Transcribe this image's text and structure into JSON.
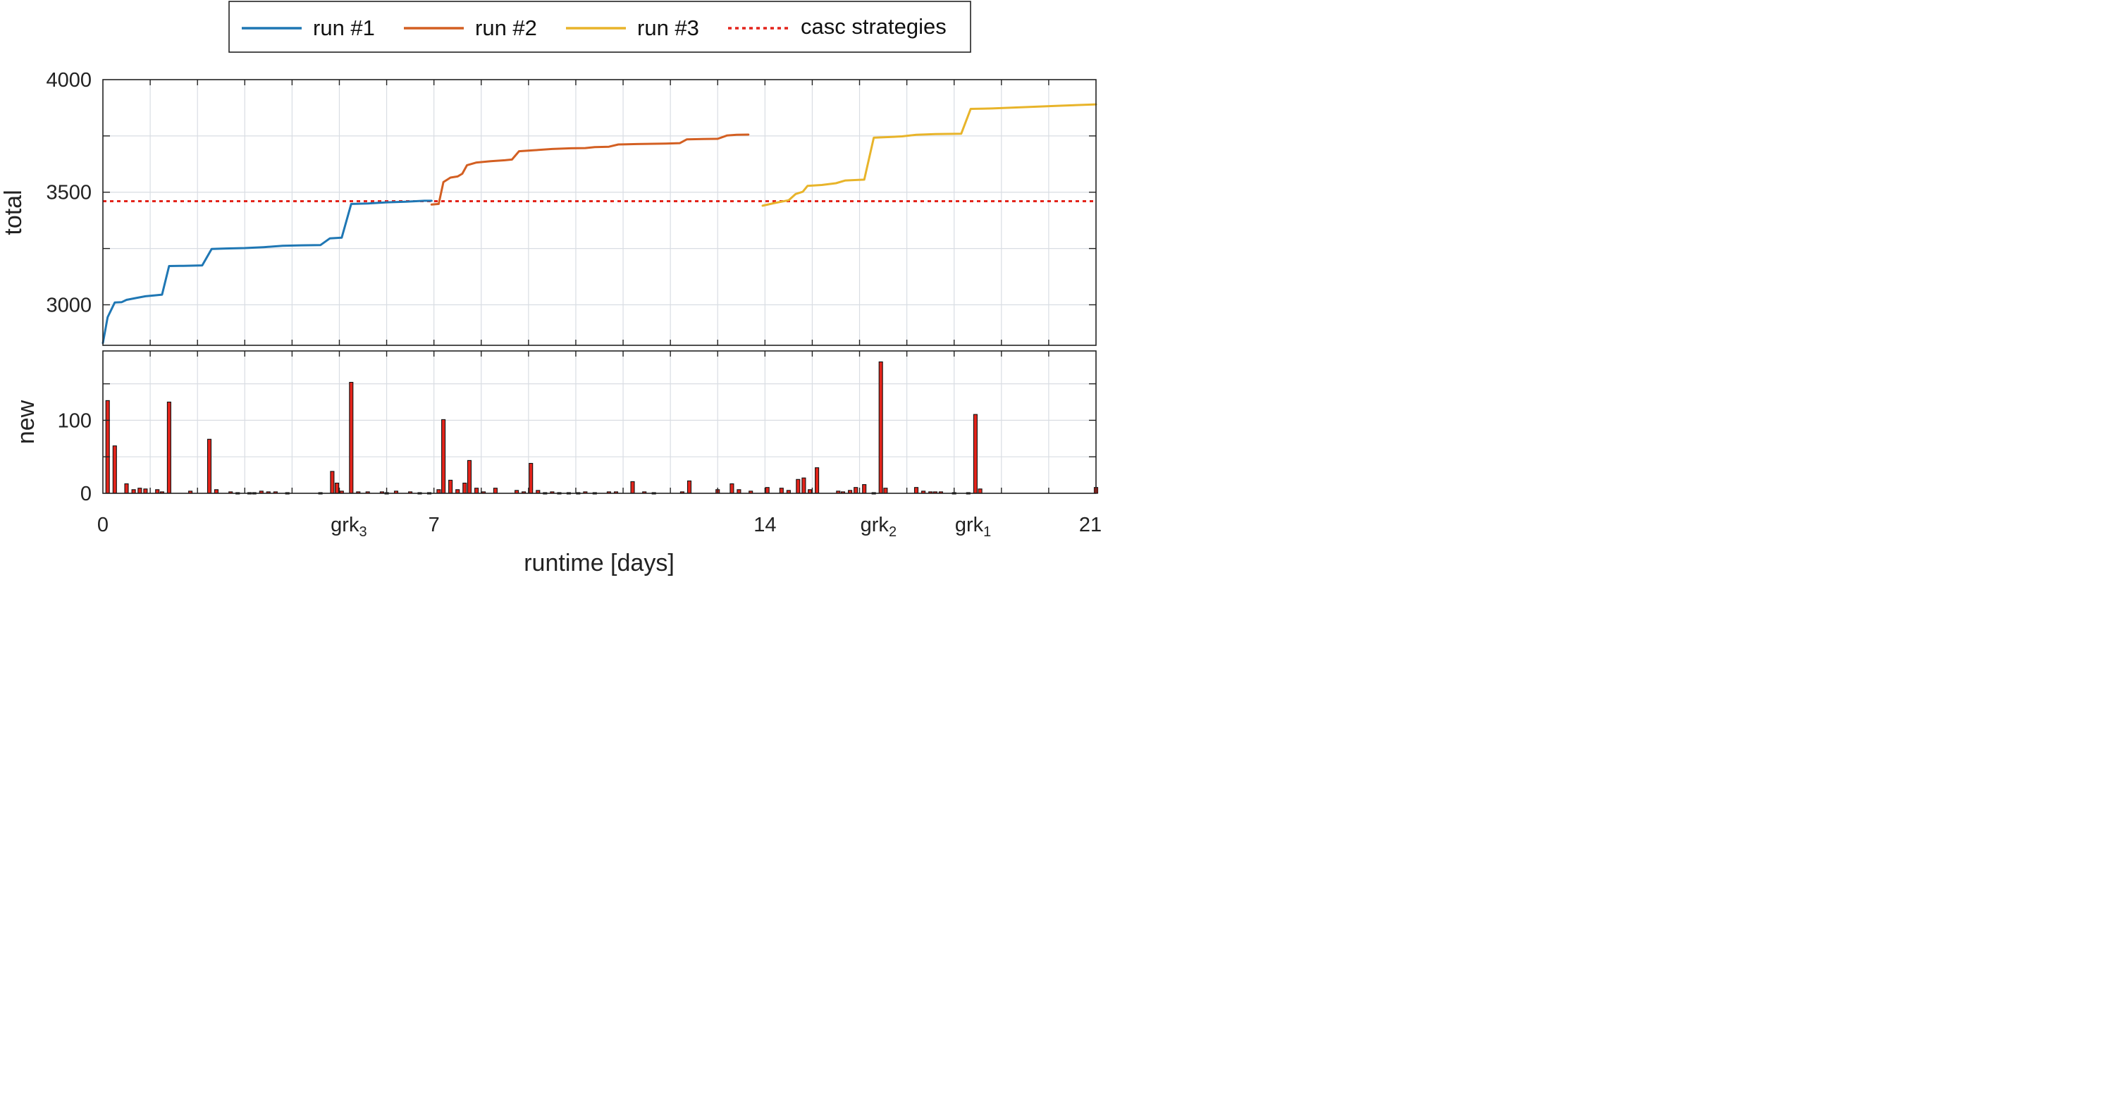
{
  "chart_data": {
    "type": "line",
    "xlabel": "runtime [days]",
    "xlim": [
      0,
      21
    ],
    "x_ticks": [
      {
        "x": 0,
        "label": "0"
      },
      {
        "x": 5.2,
        "label": "grk",
        "sub": "3"
      },
      {
        "x": 7,
        "label": "7"
      },
      {
        "x": 14,
        "label": "14"
      },
      {
        "x": 16.4,
        "label": "grk",
        "sub": "2"
      },
      {
        "x": 18.4,
        "label": "grk",
        "sub": "1"
      },
      {
        "x": 21,
        "label": "21"
      }
    ],
    "legend": {
      "position": "top-center",
      "entries": [
        {
          "label": "run #1",
          "color": "#1f77b4",
          "style": "solid"
        },
        {
          "label": "run #2",
          "color": "#d35f22",
          "style": "solid"
        },
        {
          "label": "run #3",
          "color": "#e8b42a",
          "style": "solid"
        },
        {
          "label": "casc strategies",
          "color": "#e3241b",
          "style": "dotted"
        }
      ]
    },
    "panels": [
      {
        "name": "top",
        "ylabel": "total",
        "ylim": [
          2820,
          4000
        ],
        "yticks": [
          3000,
          3500,
          4000
        ],
        "grid": true,
        "hline": {
          "y": 3460,
          "color": "#e3241b",
          "style": "dotted"
        },
        "series": [
          {
            "name": "run #1",
            "color": "#1f77b4",
            "points": [
              [
                0,
                2830
              ],
              [
                0.1,
                2945
              ],
              [
                0.25,
                3010
              ],
              [
                0.4,
                3012
              ],
              [
                0.5,
                3022
              ],
              [
                0.7,
                3030
              ],
              [
                0.9,
                3038
              ],
              [
                1.1,
                3042
              ],
              [
                1.25,
                3045
              ],
              [
                1.4,
                3172
              ],
              [
                1.7,
                3173
              ],
              [
                2.1,
                3175
              ],
              [
                2.3,
                3248
              ],
              [
                2.6,
                3250
              ],
              [
                3.0,
                3252
              ],
              [
                3.4,
                3256
              ],
              [
                3.8,
                3262
              ],
              [
                4.2,
                3264
              ],
              [
                4.6,
                3265
              ],
              [
                4.8,
                3295
              ],
              [
                5.05,
                3298
              ],
              [
                5.25,
                3448
              ],
              [
                5.6,
                3450
              ],
              [
                6.0,
                3455
              ],
              [
                6.4,
                3458
              ],
              [
                6.8,
                3462
              ],
              [
                6.95,
                3462
              ]
            ]
          },
          {
            "name": "run #2",
            "color": "#d35f22",
            "points": [
              [
                6.95,
                3445
              ],
              [
                7.1,
                3448
              ],
              [
                7.2,
                3545
              ],
              [
                7.35,
                3565
              ],
              [
                7.5,
                3570
              ],
              [
                7.6,
                3582
              ],
              [
                7.7,
                3620
              ],
              [
                7.9,
                3632
              ],
              [
                8.2,
                3638
              ],
              [
                8.5,
                3642
              ],
              [
                8.65,
                3645
              ],
              [
                8.8,
                3682
              ],
              [
                9.1,
                3686
              ],
              [
                9.5,
                3692
              ],
              [
                9.9,
                3695
              ],
              [
                10.2,
                3696
              ],
              [
                10.4,
                3700
              ],
              [
                10.7,
                3702
              ],
              [
                10.9,
                3712
              ],
              [
                11.3,
                3714
              ],
              [
                11.9,
                3716
              ],
              [
                12.2,
                3718
              ],
              [
                12.35,
                3735
              ],
              [
                12.7,
                3736
              ],
              [
                13.0,
                3737
              ],
              [
                13.2,
                3752
              ],
              [
                13.4,
                3755
              ],
              [
                13.65,
                3756
              ]
            ]
          },
          {
            "name": "run #3",
            "color": "#e8b42a",
            "points": [
              [
                13.95,
                3440
              ],
              [
                14.2,
                3452
              ],
              [
                14.5,
                3464
              ],
              [
                14.65,
                3492
              ],
              [
                14.8,
                3502
              ],
              [
                14.9,
                3528
              ],
              [
                15.2,
                3532
              ],
              [
                15.5,
                3540
              ],
              [
                15.7,
                3552
              ],
              [
                16.1,
                3556
              ],
              [
                16.3,
                3742
              ],
              [
                16.6,
                3745
              ],
              [
                16.9,
                3748
              ],
              [
                17.2,
                3755
              ],
              [
                17.6,
                3758
              ],
              [
                18.15,
                3760
              ],
              [
                18.35,
                3870
              ],
              [
                18.8,
                3872
              ],
              [
                19.5,
                3878
              ],
              [
                20.2,
                3884
              ],
              [
                21.0,
                3890
              ]
            ]
          }
        ]
      },
      {
        "name": "bottom",
        "ylabel": "new",
        "ylim": [
          0,
          195
        ],
        "yticks": [
          0,
          100
        ],
        "grid": true,
        "bar_color": "#e3241b",
        "bars": [
          [
            0.1,
            127
          ],
          [
            0.25,
            65
          ],
          [
            0.5,
            13
          ],
          [
            0.65,
            5
          ],
          [
            0.78,
            7
          ],
          [
            0.9,
            6
          ],
          [
            1.15,
            5
          ],
          [
            1.25,
            2
          ],
          [
            1.4,
            125
          ],
          [
            1.85,
            3
          ],
          [
            2.25,
            74
          ],
          [
            2.4,
            5
          ],
          [
            2.7,
            2
          ],
          [
            2.85,
            1
          ],
          [
            3.1,
            1
          ],
          [
            3.2,
            1
          ],
          [
            3.35,
            3
          ],
          [
            3.5,
            2
          ],
          [
            3.65,
            2
          ],
          [
            3.9,
            1
          ],
          [
            4.6,
            1
          ],
          [
            4.85,
            30
          ],
          [
            4.95,
            14
          ],
          [
            5.05,
            3
          ],
          [
            5.25,
            152
          ],
          [
            5.4,
            2
          ],
          [
            5.6,
            2
          ],
          [
            5.9,
            2
          ],
          [
            6.0,
            1
          ],
          [
            6.2,
            3
          ],
          [
            6.5,
            2
          ],
          [
            6.7,
            1
          ],
          [
            6.9,
            1
          ],
          [
            7.1,
            5
          ],
          [
            7.2,
            101
          ],
          [
            7.35,
            18
          ],
          [
            7.5,
            5
          ],
          [
            7.65,
            14
          ],
          [
            7.75,
            45
          ],
          [
            7.9,
            7
          ],
          [
            8.05,
            2
          ],
          [
            8.3,
            7
          ],
          [
            8.75,
            4
          ],
          [
            8.9,
            2
          ],
          [
            9.05,
            41
          ],
          [
            9.2,
            4
          ],
          [
            9.35,
            1
          ],
          [
            9.5,
            2
          ],
          [
            9.65,
            1
          ],
          [
            9.85,
            1
          ],
          [
            10.05,
            1
          ],
          [
            10.2,
            2
          ],
          [
            10.4,
            1
          ],
          [
            10.7,
            2
          ],
          [
            10.85,
            2
          ],
          [
            11.2,
            16
          ],
          [
            11.45,
            2
          ],
          [
            11.65,
            1
          ],
          [
            12.25,
            2
          ],
          [
            12.4,
            17
          ],
          [
            13.0,
            5
          ],
          [
            13.3,
            13
          ],
          [
            13.45,
            5
          ],
          [
            13.7,
            3
          ],
          [
            14.05,
            8
          ],
          [
            14.35,
            7
          ],
          [
            14.5,
            4
          ],
          [
            14.7,
            19
          ],
          [
            14.82,
            21
          ],
          [
            14.95,
            5
          ],
          [
            15.1,
            35
          ],
          [
            15.55,
            3
          ],
          [
            15.65,
            2
          ],
          [
            15.8,
            4
          ],
          [
            15.92,
            8
          ],
          [
            16.1,
            12
          ],
          [
            16.3,
            1
          ],
          [
            16.45,
            180
          ],
          [
            16.55,
            7
          ],
          [
            17.2,
            8
          ],
          [
            17.35,
            3
          ],
          [
            17.5,
            2
          ],
          [
            17.6,
            2
          ],
          [
            17.72,
            2
          ],
          [
            18.0,
            1
          ],
          [
            18.3,
            1
          ],
          [
            18.45,
            108
          ],
          [
            18.55,
            6
          ],
          [
            21.0,
            8
          ]
        ]
      }
    ]
  }
}
